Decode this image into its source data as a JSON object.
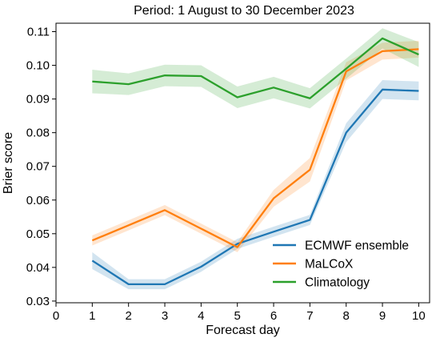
{
  "chart_data": {
    "type": "line",
    "title": "Period: 1 August to 30 December 2023",
    "xlabel": "Forecast day",
    "ylabel": "Brier score",
    "xlim": [
      0,
      10.3
    ],
    "ylim": [
      0.0295,
      0.1125
    ],
    "xticks": [
      "0",
      "1",
      "2",
      "3",
      "4",
      "5",
      "6",
      "7",
      "8",
      "9",
      "10"
    ],
    "yticks": [
      "0.03",
      "0.04",
      "0.05",
      "0.06",
      "0.07",
      "0.08",
      "0.09",
      "0.10",
      "0.11"
    ],
    "grid": false,
    "legend_position": "lower-right",
    "x": [
      1,
      2,
      3,
      4,
      5,
      6,
      7,
      8,
      9,
      10
    ],
    "series": [
      {
        "name": "ECMWF ensemble",
        "color": "#1f77b4",
        "values": [
          0.042,
          0.035,
          0.035,
          0.0402,
          0.047,
          0.0506,
          0.0541,
          0.08,
          0.0928,
          0.0924
        ],
        "lower": [
          0.0395,
          0.0335,
          0.0335,
          0.0387,
          0.0455,
          0.0491,
          0.0526,
          0.0772,
          0.09,
          0.0896
        ],
        "upper": [
          0.0445,
          0.0365,
          0.0365,
          0.0417,
          0.0485,
          0.0521,
          0.0556,
          0.0828,
          0.0956,
          0.0952
        ]
      },
      {
        "name": "MaLCoX",
        "color": "#ff7f0e",
        "values": [
          0.048,
          0.0525,
          0.057,
          0.0515,
          0.046,
          0.0605,
          0.069,
          0.0982,
          0.1042,
          0.1048
        ],
        "lower": [
          0.0465,
          0.051,
          0.0555,
          0.05,
          0.0445,
          0.058,
          0.0655,
          0.0955,
          0.1017,
          0.1023
        ],
        "upper": [
          0.0495,
          0.054,
          0.0585,
          0.053,
          0.0475,
          0.063,
          0.0725,
          0.1009,
          0.1067,
          0.1073
        ]
      },
      {
        "name": "Climatology",
        "color": "#2ca02c",
        "values": [
          0.0952,
          0.0944,
          0.097,
          0.0968,
          0.0905,
          0.0934,
          0.0902,
          0.099,
          0.108,
          0.1032
        ],
        "lower": [
          0.0917,
          0.0912,
          0.0938,
          0.0936,
          0.0873,
          0.0902,
          0.0872,
          0.096,
          0.105,
          0.0995
        ],
        "upper": [
          0.0987,
          0.0976,
          0.1002,
          0.1,
          0.0937,
          0.0966,
          0.0932,
          0.102,
          0.111,
          0.1069
        ]
      }
    ]
  }
}
